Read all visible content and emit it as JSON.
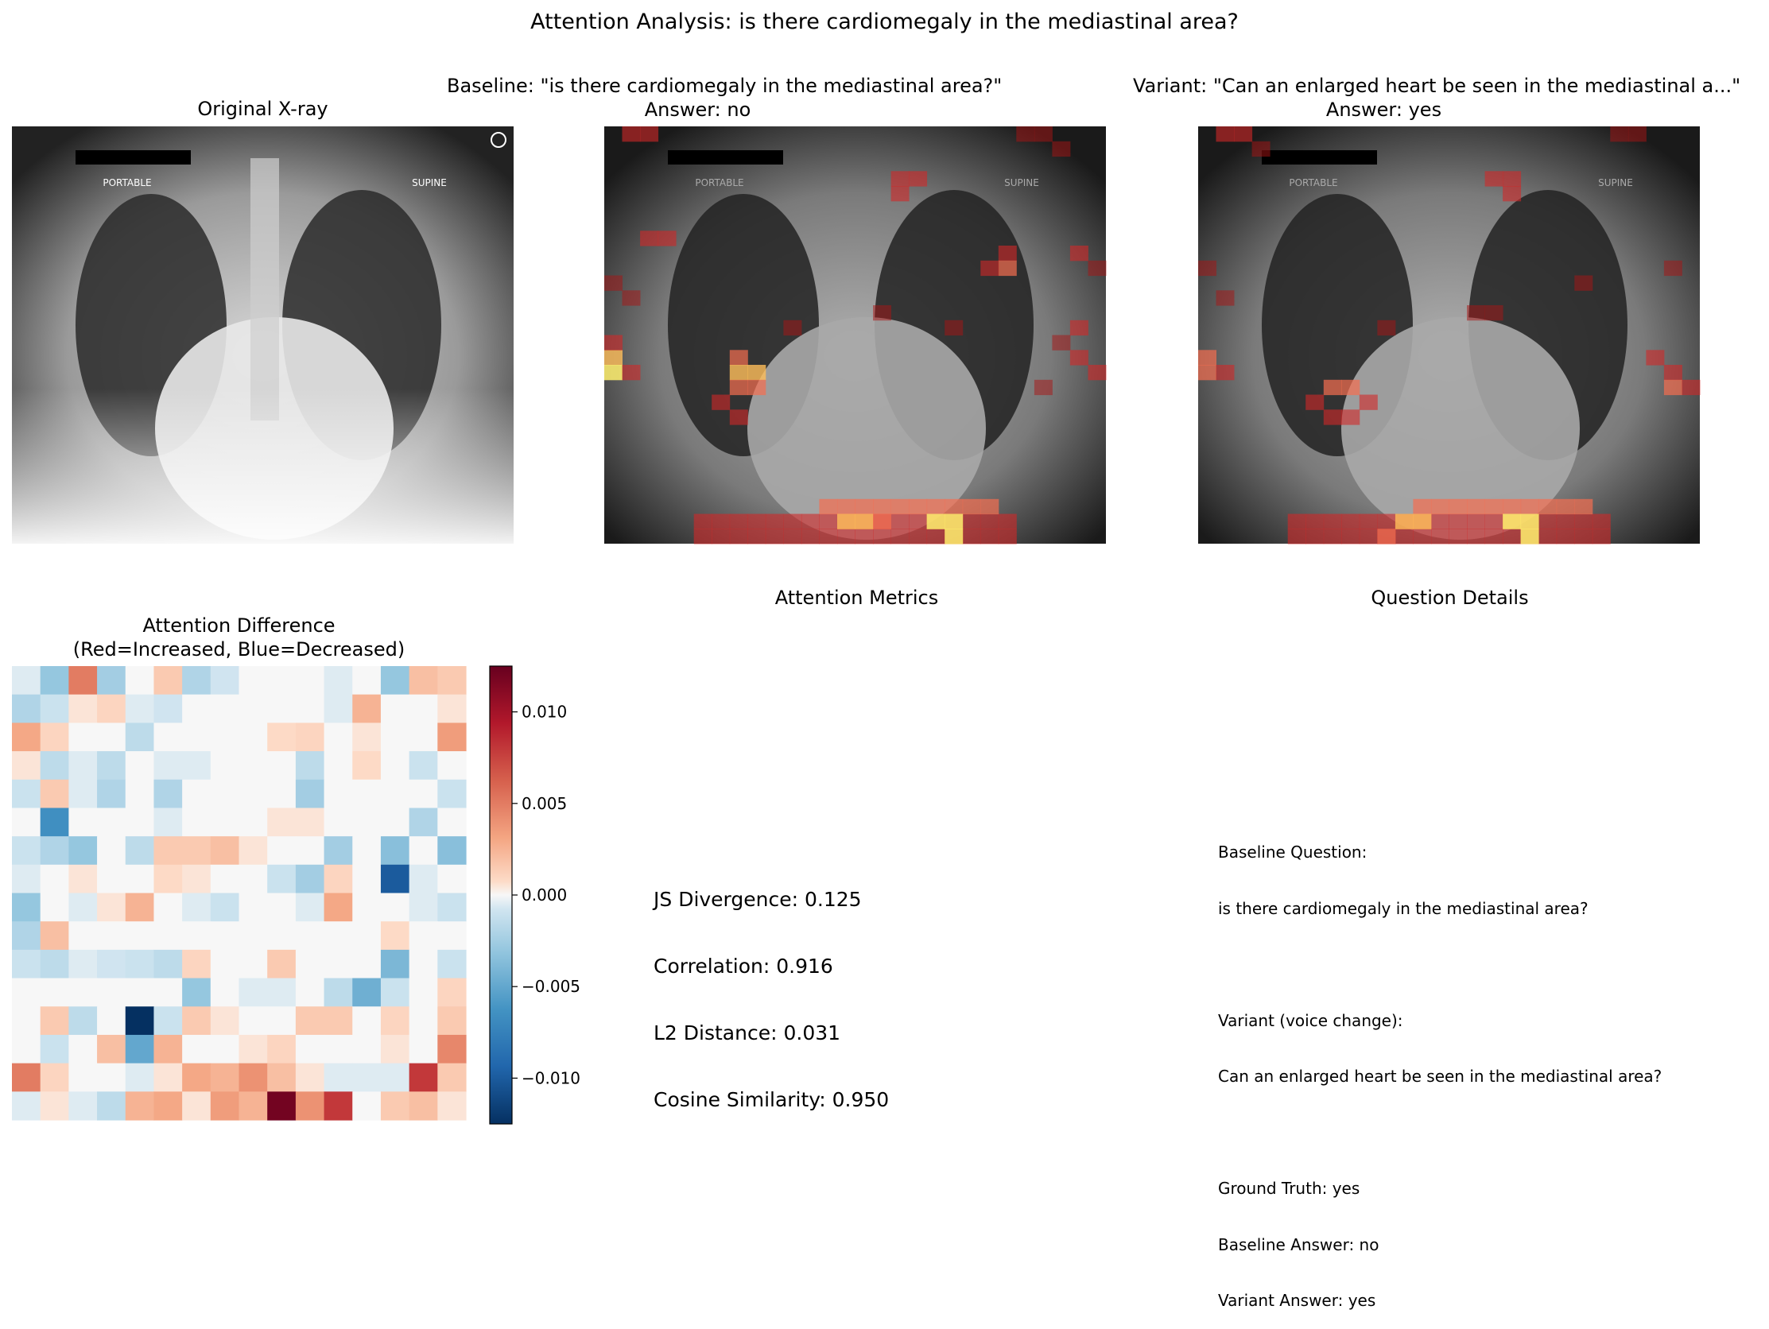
{
  "figure": {
    "title": "Attention Analysis: is there cardiomegaly in the mediastinal area?"
  },
  "panels": {
    "original": {
      "title": "Original X-ray",
      "overlay_left": "PORTABLE",
      "overlay_right": "SUPINE"
    },
    "baseline": {
      "title_line1": "Baseline: \"is there cardiomegaly in the mediastinal area?\" ",
      "title_line2": "Answer: no"
    },
    "variant": {
      "title_line1": "Variant: \"Can an enlarged heart be seen in the mediastinal a...\"",
      "title_line2": "Answer: yes"
    },
    "difference": {
      "title_line1": "Attention Difference",
      "title_line2": "(Red=Increased, Blue=Decreased)"
    },
    "metrics": {
      "title": "Attention Metrics",
      "lines": [
        "JS Divergence: 0.125",
        "Correlation: 0.916",
        "L2 Distance: 0.031",
        "Cosine Similarity: 0.950"
      ]
    },
    "details": {
      "title": "Question Details",
      "baseline_q_label": "Baseline Question:",
      "baseline_q": "is there cardiomegaly in the mediastinal area?",
      "variant_q_label": "Variant (voice change):",
      "variant_q": "Can an enlarged heart be seen in the mediastinal area?",
      "ground_truth": "Ground Truth: yes",
      "baseline_answer": "Baseline Answer: no",
      "variant_answer": "Variant Answer: yes"
    }
  },
  "colors": {
    "diverging_low": "#053061",
    "diverging_mid": "#f7f7f7",
    "diverging_high": "#67001f",
    "heat_hot": "#ffff60",
    "heat_red": "#d01010"
  },
  "chart_data": {
    "type": "heatmap",
    "title": "Attention Difference",
    "colormap": "RdBu_r",
    "vmin": -0.0125,
    "vmax": 0.0125,
    "colorbar_ticks": [
      0.01,
      0.005,
      0.0,
      -0.005,
      -0.01
    ],
    "colorbar_tick_labels": [
      "0.010",
      "0.005",
      "0.000",
      "−0.005",
      "−0.010"
    ],
    "rows": 16,
    "cols": 16,
    "values": [
      [
        -0.0005,
        -0.003,
        0.005,
        -0.0025,
        0.0,
        0.0015,
        -0.002,
        -0.0008,
        0.0,
        0.0,
        0.0,
        -0.0005,
        0.0,
        -0.003,
        0.002,
        0.0015
      ],
      [
        -0.002,
        -0.001,
        0.0005,
        0.001,
        -0.0005,
        -0.0008,
        0.0,
        0.0,
        0.0,
        0.0,
        0.0,
        -0.0005,
        0.0025,
        0.0,
        0.0,
        0.0005
      ],
      [
        0.003,
        0.001,
        0.0,
        0.0,
        -0.0015,
        0.0,
        0.0,
        0.0,
        0.0,
        0.0008,
        0.001,
        0.0,
        0.0005,
        0.0,
        0.0,
        0.0035
      ],
      [
        0.0005,
        -0.0015,
        -0.0005,
        -0.0015,
        0.0,
        -0.0005,
        -0.0005,
        0.0,
        0.0,
        0.0,
        -0.0015,
        0.0,
        0.0008,
        0.0,
        -0.001,
        0.0
      ],
      [
        -0.001,
        0.0015,
        -0.0005,
        -0.002,
        0.0,
        -0.002,
        0.0,
        0.0,
        0.0,
        0.0,
        -0.0025,
        0.0,
        0.0,
        0.0,
        0.0,
        -0.001
      ],
      [
        0.0,
        -0.0065,
        0.0,
        0.0,
        0.0,
        -0.0005,
        0.0,
        0.0,
        0.0,
        0.0005,
        0.0005,
        0.0,
        0.0,
        0.0,
        -0.002,
        0.0
      ],
      [
        -0.001,
        -0.002,
        -0.003,
        0.0,
        -0.0015,
        0.0015,
        0.0015,
        0.002,
        0.0005,
        0.0,
        0.0,
        -0.0025,
        0.0,
        -0.0035,
        0.0,
        -0.0035
      ],
      [
        -0.0005,
        0.0,
        0.0005,
        0.0,
        0.0,
        0.0008,
        0.0005,
        0.0,
        0.0,
        -0.001,
        -0.0025,
        0.001,
        0.0,
        -0.01,
        -0.0005,
        0.0
      ],
      [
        -0.003,
        0.0,
        -0.0005,
        0.0005,
        0.0025,
        0.0,
        -0.0005,
        -0.001,
        0.0,
        0.0,
        -0.0005,
        0.003,
        0.0,
        0.0,
        -0.0005,
        -0.001
      ],
      [
        -0.002,
        0.002,
        0.0,
        0.0,
        0.0,
        0.0,
        0.0,
        0.0,
        0.0,
        0.0,
        0.0,
        0.0,
        0.0,
        0.0008,
        0.0,
        0.0
      ],
      [
        -0.001,
        -0.0015,
        -0.0005,
        -0.0008,
        -0.001,
        -0.0015,
        0.001,
        0.0,
        0.0,
        0.0015,
        0.0,
        0.0,
        0.0,
        -0.004,
        0.0,
        -0.001
      ],
      [
        0.0,
        0.0,
        0.0,
        0.0,
        0.0,
        0.0,
        -0.003,
        0.0,
        -0.0005,
        -0.0005,
        0.0,
        -0.0015,
        -0.0045,
        -0.001,
        0.0,
        0.001
      ],
      [
        0.0,
        0.0015,
        -0.0015,
        0.0,
        -0.0125,
        -0.001,
        0.0015,
        0.0005,
        0.0,
        0.0,
        0.0015,
        0.0015,
        0.0,
        0.001,
        0.0,
        0.0015
      ],
      [
        0.0,
        -0.001,
        0.0,
        0.002,
        -0.005,
        0.0025,
        0.0,
        0.0,
        0.0005,
        0.001,
        0.0,
        0.0,
        0.0,
        0.0005,
        0.0,
        0.0045
      ],
      [
        0.005,
        0.001,
        0.0,
        0.0,
        -0.0005,
        0.0005,
        0.003,
        0.0025,
        0.004,
        0.002,
        0.0005,
        -0.0005,
        -0.0005,
        -0.0005,
        0.008,
        0.0015
      ],
      [
        -0.0005,
        0.0005,
        -0.0005,
        -0.0015,
        0.0025,
        0.003,
        0.0005,
        0.0035,
        0.0025,
        0.012,
        0.004,
        0.008,
        0.0,
        0.0015,
        0.002,
        0.0005
      ]
    ]
  }
}
